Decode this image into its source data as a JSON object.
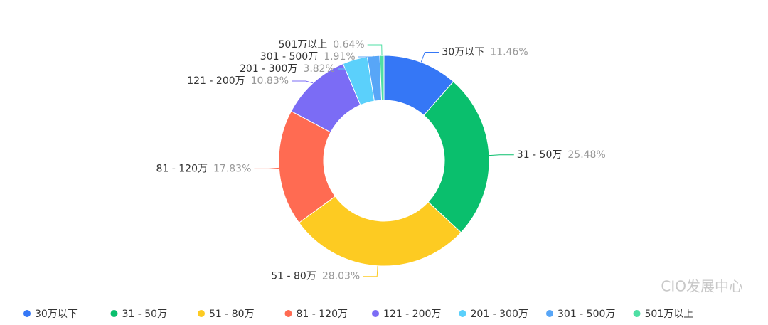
{
  "chart_data": {
    "type": "donut",
    "categories": [
      "30万以下",
      "31 - 50万",
      "51 - 80万",
      "81 - 120万",
      "121 - 200万",
      "201 - 300万",
      "301 - 500万",
      "501万以上"
    ],
    "values": [
      11.46,
      25.48,
      28.03,
      17.83,
      10.83,
      3.82,
      1.91,
      0.64
    ],
    "value_labels": [
      "11.46%",
      "25.48%",
      "28.03%",
      "17.83%",
      "10.83%",
      "3.82%",
      "1.91%",
      "0.64%"
    ],
    "colors": [
      "#3577f6",
      "#0abf6d",
      "#fdcb22",
      "#ff6b52",
      "#7b6cf5",
      "#5bd0fb",
      "#58a6f7",
      "#4fdfa4"
    ],
    "legend": "bottom",
    "watermark": "CIO发展中心"
  }
}
